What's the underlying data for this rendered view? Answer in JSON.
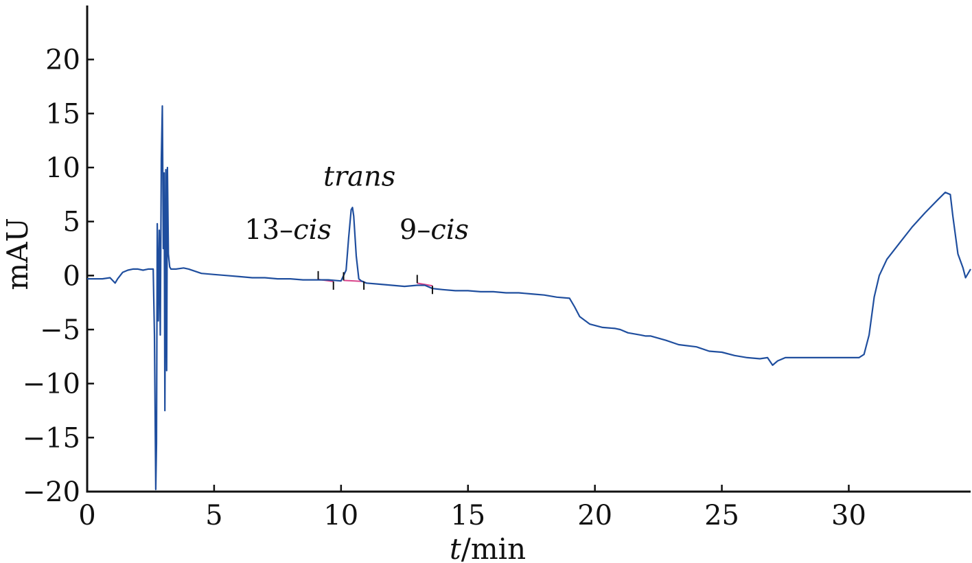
{
  "chart_data": {
    "type": "line",
    "title": "",
    "xlabel_italic": "t",
    "xlabel_rest": "/min",
    "ylabel": "mAU",
    "xlim": [
      0,
      34.8
    ],
    "ylim": [
      -20,
      25
    ],
    "xticks": [
      0,
      5,
      10,
      15,
      20,
      25,
      30
    ],
    "yticks": [
      -20,
      -15,
      -10,
      -5,
      0,
      5,
      10,
      15,
      20
    ],
    "grid": false,
    "legend": "none",
    "colors": {
      "trace": "#1f4e9e",
      "baseline": "#d9448a",
      "axis": "#111111"
    },
    "annotations": [
      {
        "parts": [
          {
            "text": "13–",
            "italic": false
          },
          {
            "text": "cis",
            "italic": true
          }
        ],
        "x": 6.2,
        "y": 3.4
      },
      {
        "parts": [
          {
            "text": "trans",
            "italic": true
          }
        ],
        "x": 9.3,
        "y": 8.3
      },
      {
        "parts": [
          {
            "text": "9–",
            "italic": false
          },
          {
            "text": "cis",
            "italic": true
          }
        ],
        "x": 12.3,
        "y": 3.4
      }
    ],
    "peak_markers": [
      {
        "x": 9.1,
        "y": -0.35,
        "dir": "up"
      },
      {
        "x": 9.7,
        "y": -0.55,
        "dir": "down"
      },
      {
        "x": 10.1,
        "y": -0.45,
        "dir": "up"
      },
      {
        "x": 10.9,
        "y": -0.55,
        "dir": "down"
      },
      {
        "x": 13.0,
        "y": -0.7,
        "dir": "up"
      },
      {
        "x": 13.6,
        "y": -0.95,
        "dir": "down"
      }
    ],
    "baselines": [
      {
        "x": [
          9.1,
          9.7
        ],
        "y": [
          -0.35,
          -0.55
        ]
      },
      {
        "x": [
          10.1,
          10.9
        ],
        "y": [
          -0.45,
          -0.55
        ]
      },
      {
        "x": [
          13.0,
          13.6
        ],
        "y": [
          -0.7,
          -0.95
        ]
      }
    ],
    "series": [
      {
        "x": [
          0,
          0.3,
          0.6,
          0.9,
          1.1,
          1.2,
          1.4,
          1.6,
          1.8,
          2.0,
          2.2,
          2.4,
          2.6,
          2.65,
          2.7,
          2.73,
          2.76,
          2.8,
          2.84,
          2.88,
          2.92,
          2.96,
          3.0,
          3.03,
          3.06,
          3.1,
          3.13,
          3.16,
          3.2,
          3.25,
          3.3,
          3.5,
          3.8,
          4.0,
          4.5,
          5.0,
          5.5,
          6.0,
          6.5,
          7.0,
          7.5,
          8.0,
          8.5,
          9.0,
          9.5,
          10.0,
          10.2,
          10.3,
          10.4,
          10.45,
          10.5,
          10.6,
          10.7,
          10.8,
          11.0,
          11.5,
          12.0,
          12.5,
          13.0,
          13.3,
          13.6,
          14.0,
          14.5,
          15.0,
          15.5,
          16.0,
          16.5,
          17.0,
          17.5,
          18.0,
          18.5,
          19.0,
          19.2,
          19.4,
          19.8,
          20.3,
          20.8,
          21.0,
          21.3,
          21.8,
          22.0,
          22.2,
          22.8,
          23.3,
          24.0,
          24.5,
          25.0,
          25.5,
          26.0,
          26.5,
          26.8,
          27.0,
          27.2,
          27.5,
          28.0,
          29.0,
          30.0,
          30.4,
          30.6,
          30.8,
          31.0,
          31.2,
          31.5,
          32.0,
          32.5,
          33.0,
          33.5,
          33.8,
          34.0,
          34.1,
          34.3,
          34.5,
          34.6,
          34.8
        ],
        "y": [
          -0.3,
          -0.3,
          -0.3,
          -0.2,
          -0.7,
          -0.3,
          0.3,
          0.5,
          0.6,
          0.6,
          0.5,
          0.6,
          0.6,
          -5.5,
          -19.8,
          -15.5,
          4.8,
          -4.2,
          4.2,
          -5.5,
          10.8,
          15.7,
          2.5,
          9.5,
          -12.5,
          9.8,
          -8.8,
          10.0,
          2.0,
          0.8,
          0.6,
          0.6,
          0.7,
          0.6,
          0.2,
          0.1,
          0.0,
          -0.1,
          -0.2,
          -0.2,
          -0.3,
          -0.3,
          -0.4,
          -0.4,
          -0.4,
          -0.5,
          0.5,
          3.5,
          6.1,
          6.3,
          5.5,
          1.8,
          -0.3,
          -0.5,
          -0.7,
          -0.8,
          -0.9,
          -1.0,
          -0.9,
          -0.9,
          -1.2,
          -1.3,
          -1.4,
          -1.4,
          -1.5,
          -1.5,
          -1.6,
          -1.6,
          -1.7,
          -1.8,
          -2.0,
          -2.1,
          -2.9,
          -3.8,
          -4.5,
          -4.8,
          -4.9,
          -5.0,
          -5.3,
          -5.5,
          -5.6,
          -5.6,
          -6.0,
          -6.4,
          -6.6,
          -7.0,
          -7.1,
          -7.4,
          -7.6,
          -7.7,
          -7.6,
          -8.3,
          -7.9,
          -7.6,
          -7.6,
          -7.6,
          -7.6,
          -7.6,
          -7.3,
          -5.5,
          -2.0,
          0.0,
          1.5,
          3.0,
          4.5,
          5.8,
          7.0,
          7.7,
          7.5,
          5.5,
          2.0,
          0.7,
          -0.2,
          0.6
        ]
      }
    ]
  }
}
